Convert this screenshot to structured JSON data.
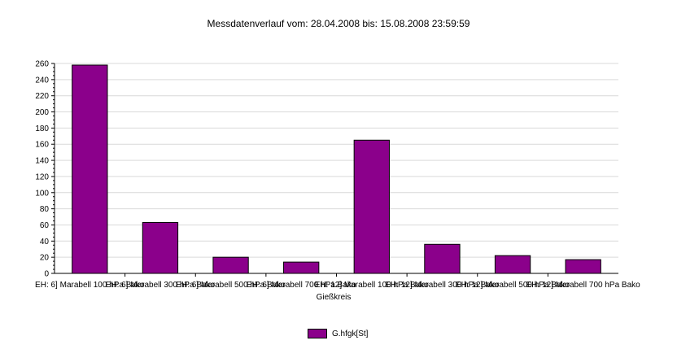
{
  "chart_data": {
    "type": "bar",
    "title": "Messdatenverlauf vom: 28.04.2008 bis: 15.08.2008 23:59:59",
    "xlabel": "Gießkreis",
    "ylabel": "",
    "ylim": [
      0,
      260
    ],
    "yticks": [
      "0",
      "20",
      "40",
      "60",
      "80",
      "100",
      "120",
      "140",
      "160",
      "180",
      "200",
      "220",
      "240",
      "260"
    ],
    "grid": true,
    "legend_position": "bottom-center",
    "categories": [
      "EH: 6] Marabell 100 hPa Bako",
      "EH: 6] Marabell 300 hPa Bako",
      "EH: 6] Marabell 500 hPa Bako",
      "EH: 6] Marabell 700 hPa Bako",
      "EH: 12] Marabell 100 hPa Bako",
      "EH: 12] Marabell 300 hPa Bako",
      "EH: 12] Marabell 500 hPa Bako",
      "EH: 12] Marabell 700 hPa Bako"
    ],
    "series": [
      {
        "name": "G.hfgk[St]",
        "color": "#8b008b",
        "values": [
          258,
          63,
          20,
          14,
          165,
          36,
          22,
          17
        ]
      }
    ]
  }
}
